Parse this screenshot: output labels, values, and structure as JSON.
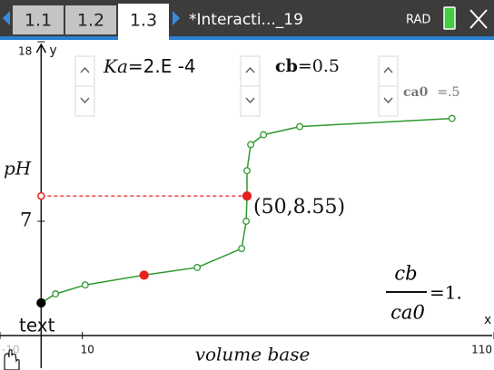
{
  "header": {
    "tabs": [
      "1.1",
      "1.2",
      "1.3"
    ],
    "active_tab": 2,
    "document_title": "*Interacti..._19",
    "angle_mode": "RAD"
  },
  "sliders": [
    {
      "name": "Ka",
      "value": "=2.E -4"
    },
    {
      "name": "cb",
      "value": "=0.5"
    },
    {
      "name": "ca0",
      "value": "=.5"
    }
  ],
  "fraction": {
    "numerator": "cb",
    "denominator": "ca0",
    "result": "=1."
  },
  "text_label": "text",
  "chart_data": {
    "type": "scatter-line",
    "x_axis_name": "x",
    "y_axis_name": "y",
    "xlabel": "volume base",
    "ylabel": "pH",
    "x": [
      0,
      3.5,
      10.7,
      25,
      37.9,
      48.7,
      49.8,
      50,
      50,
      50.9,
      54,
      62.8,
      99.8
    ],
    "series": [
      {
        "color": "#2e9a2e",
        "values": [
          2.0,
          2.55,
          3.1,
          3.7,
          4.17,
          5.33,
          7.0,
          8.55,
          10.1,
          11.7,
          12.3,
          12.8,
          13.3
        ]
      }
    ],
    "start_point_color": "#000000",
    "highlight": {
      "color": "#e8201e",
      "indices": [
        3,
        7
      ]
    },
    "trace_label": "(50,8.55)",
    "xlim": [
      -10,
      110
    ],
    "ylim": [
      -2,
      18
    ],
    "xticks": [
      -10,
      10,
      110
    ],
    "yticks": [
      7,
      18
    ]
  }
}
